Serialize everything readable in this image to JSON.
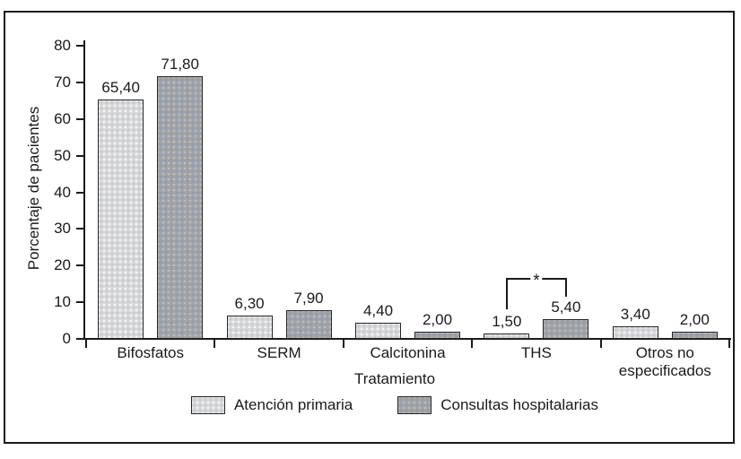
{
  "figure": {
    "background": "#ffffff",
    "frame_border_color": "#1a1a1a",
    "text_color": "#1a1a1a"
  },
  "chart_data": {
    "type": "bar",
    "title": "",
    "xlabel": "Tratamiento",
    "ylabel": "Porcentaje de pacientes",
    "ylim": [
      0,
      80
    ],
    "yticks": [
      "0",
      "10",
      "20",
      "30",
      "40",
      "50",
      "60",
      "70",
      "80"
    ],
    "grid": false,
    "legend_position": "bottom",
    "decimal_separator": ",",
    "categories": [
      "Bifosfatos",
      "SERM",
      "Calcitonina",
      "THS",
      "Otros no especificados"
    ],
    "category_display": [
      [
        "Bifosfatos"
      ],
      [
        "SERM"
      ],
      [
        "Calcitonina"
      ],
      [
        "THS"
      ],
      [
        "Otros no",
        "especificados"
      ]
    ],
    "series": [
      {
        "name": "Atención primaria",
        "color": "#d8d8d8",
        "values": [
          65.4,
          6.3,
          4.4,
          1.5,
          3.4
        ],
        "labels": [
          "65,40",
          "6,30",
          "4,40",
          "1,50",
          "3,40"
        ]
      },
      {
        "name": "Consultas hospitalarias",
        "color": "#a3a3a3",
        "values": [
          71.8,
          7.9,
          2.0,
          5.4,
          2.0
        ],
        "labels": [
          "71,80",
          "7,90",
          "2,00",
          "5,40",
          "2,00"
        ]
      }
    ],
    "annotations": [
      {
        "type": "significance-bracket",
        "category": "THS",
        "between": [
          "Atención primaria",
          "Consultas hospitalarias"
        ],
        "label": "*"
      }
    ]
  }
}
